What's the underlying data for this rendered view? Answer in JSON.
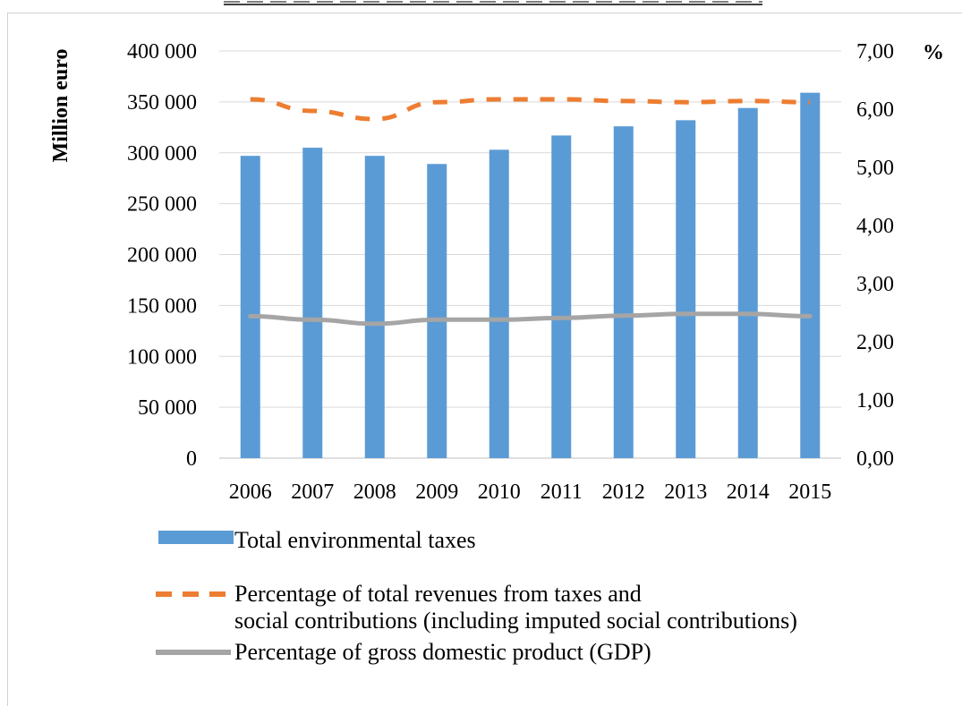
{
  "chart_data": {
    "type": "bar",
    "categories": [
      "2006",
      "2007",
      "2008",
      "2009",
      "2010",
      "2011",
      "2012",
      "2013",
      "2014",
      "2015"
    ],
    "series": [
      {
        "name": "Total environmental taxes",
        "type": "bar",
        "axis": "left",
        "color": "#5b9bd5",
        "values": [
          297000,
          305000,
          297000,
          289000,
          303000,
          317000,
          326000,
          332000,
          344000,
          359000
        ]
      },
      {
        "name": "Percentage of total revenues from taxes and social contributions (including imputed social contributions)",
        "type": "line",
        "axis": "right",
        "color": "#ed7d31",
        "dash": true,
        "values": [
          6.17,
          5.97,
          5.83,
          6.12,
          6.17,
          6.17,
          6.14,
          6.12,
          6.14,
          6.12
        ]
      },
      {
        "name": "Percentage of gross domestic product (GDP)",
        "type": "line",
        "axis": "right",
        "color": "#a5a5a5",
        "dash": false,
        "values": [
          2.44,
          2.38,
          2.31,
          2.38,
          2.38,
          2.41,
          2.45,
          2.48,
          2.48,
          2.44
        ]
      }
    ],
    "ylabel": "Million euro",
    "y2label": "%",
    "ylim": [
      0,
      400000
    ],
    "y2lim": [
      0,
      7
    ],
    "yticks": [
      "0",
      "50 000",
      "100 000",
      "150 000",
      "200 000",
      "250 000",
      "300 000",
      "350 000",
      "400 000"
    ],
    "y2ticks": [
      "0,00",
      "1,00",
      "2,00",
      "3,00",
      "4,00",
      "5,00",
      "6,00",
      "7,00"
    ],
    "grid": true,
    "legend_position": "bottom"
  }
}
